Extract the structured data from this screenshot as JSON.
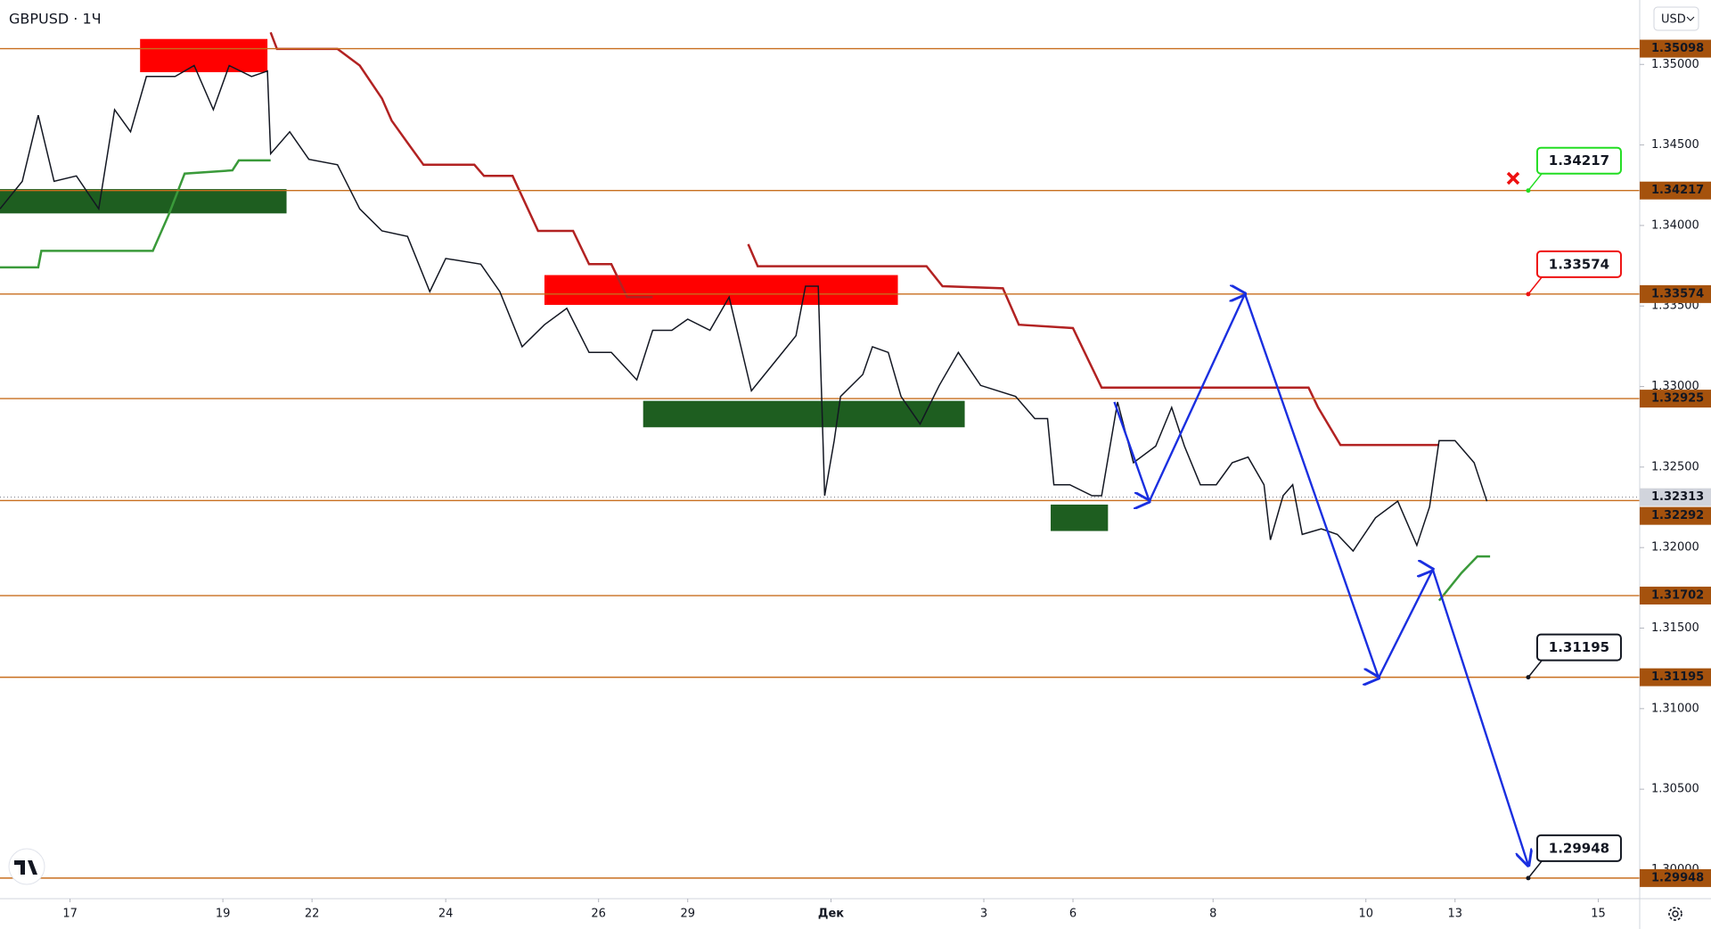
{
  "chart_data": {
    "type": "line",
    "title": "GBPUSD · 1Ч",
    "currency": "USD",
    "color": "#131722",
    "x": [
      -22,
      -15,
      -10,
      -5,
      2,
      9,
      14,
      19,
      24,
      33,
      39,
      45,
      50,
      57,
      62,
      63,
      69,
      75,
      84,
      91,
      98,
      106,
      113,
      118,
      129,
      135,
      142,
      149,
      156,
      163,
      170,
      178,
      183,
      189,
      194,
      201,
      207,
      214,
      221,
      228,
      231,
      235,
      237,
      240,
      242,
      249,
      252,
      257,
      261,
      267,
      273,
      279,
      286,
      297,
      303,
      307,
      309,
      314,
      321,
      324,
      329,
      334,
      341,
      346,
      350,
      355,
      360,
      365,
      370,
      375,
      377,
      381,
      384,
      387,
      393,
      398,
      403,
      410,
      417,
      423,
      427,
      430,
      435,
      441,
      445
    ],
    "values": [
      1.34103,
      1.34274,
      1.34685,
      1.34274,
      1.34308,
      1.34103,
      1.34719,
      1.34582,
      1.34925,
      1.34925,
      1.34993,
      1.34719,
      1.34993,
      1.34925,
      1.34959,
      1.34445,
      1.34582,
      1.34411,
      1.34377,
      1.34103,
      1.33966,
      1.33932,
      1.33589,
      1.33795,
      1.3376,
      1.33589,
      1.33247,
      1.33384,
      1.33486,
      1.33212,
      1.33212,
      1.33041,
      1.33349,
      1.33349,
      1.33418,
      1.33349,
      1.33555,
      1.32973,
      1.33144,
      1.33315,
      1.33623,
      1.33623,
      1.32322,
      1.32664,
      1.32938,
      1.33075,
      1.33247,
      1.33212,
      1.32938,
      1.32767,
      1.33007,
      1.33212,
      1.33007,
      1.32938,
      1.32801,
      1.32801,
      1.3239,
      1.3239,
      1.32322,
      1.32322,
      1.32904,
      1.32527,
      1.3263,
      1.3287,
      1.3263,
      1.3239,
      1.3239,
      1.32527,
      1.32562,
      1.3239,
      1.32048,
      1.32322,
      1.3239,
      1.32082,
      1.32116,
      1.32082,
      1.31979,
      1.32185,
      1.32288,
      1.32014,
      1.32253,
      1.32664,
      1.32664,
      1.32527,
      1.32288
    ],
    "xlim": [
      -22,
      493
    ],
    "xticks": [
      {
        "value": 0,
        "label": "17"
      },
      {
        "value": 48,
        "label": "19"
      },
      {
        "value": 76,
        "label": "22"
      },
      {
        "value": 118,
        "label": "24"
      },
      {
        "value": 166,
        "label": "26"
      },
      {
        "value": 194,
        "label": "29"
      },
      {
        "value": 239,
        "label": "Дек"
      },
      {
        "value": 287,
        "label": "3"
      },
      {
        "value": 315,
        "label": "6"
      },
      {
        "value": 359,
        "label": "8"
      },
      {
        "value": 407,
        "label": "10"
      },
      {
        "value": 435,
        "label": "13"
      },
      {
        "value": 480,
        "label": "15"
      }
    ],
    "ylim": [
      1.2982,
      1.354
    ],
    "yticks": [
      {
        "value": 1.35,
        "label": "1.35000"
      },
      {
        "value": 1.345,
        "label": "1.34500"
      },
      {
        "value": 1.34,
        "label": "1.34000"
      },
      {
        "value": 1.335,
        "label": "1.33500"
      },
      {
        "value": 1.33,
        "label": "1.33000"
      },
      {
        "value": 1.325,
        "label": "1.32500"
      },
      {
        "value": 1.32,
        "label": "1.32000"
      },
      {
        "value": 1.315,
        "label": "1.31500"
      },
      {
        "value": 1.31,
        "label": "1.31000"
      },
      {
        "value": 1.305,
        "label": "1.30500"
      },
      {
        "value": 1.3,
        "label": "1.30000"
      }
    ],
    "last_price": 1.32313,
    "levels": {
      "color": "#c86e1e",
      "values": [
        1.35098,
        1.34217,
        1.33574,
        1.32925,
        1.32292,
        1.31702,
        1.31195,
        1.29948
      ]
    },
    "zones": [
      {
        "color": "#ff0000",
        "x": [
          22,
          62
        ],
        "values": [
          1.34952,
          1.35158
        ]
      },
      {
        "color": "#ff0000",
        "x": [
          149,
          260
        ],
        "values": [
          1.33507,
          1.33692
        ]
      },
      {
        "color": "#1e5e20",
        "x": [
          -22,
          68
        ],
        "values": [
          1.34075,
          1.34226
        ]
      },
      {
        "color": "#1e5e20",
        "x": [
          180,
          281
        ],
        "values": [
          1.32747,
          1.32911
        ]
      },
      {
        "color": "#1e5e20",
        "x": [
          308,
          326
        ],
        "values": [
          1.32103,
          1.32267
        ]
      }
    ],
    "trail": [
      {
        "color": "#b22222",
        "x": [
          63,
          65,
          84,
          91,
          98,
          101,
          106,
          111,
          127,
          130,
          139,
          147,
          158,
          163,
          170,
          175,
          183,
          200,
          213,
          216,
          269,
          274,
          293,
          298,
          315,
          324,
          389,
          392,
          399,
          430
        ],
        "values": [
          1.35199,
          1.35096,
          1.35096,
          1.34993,
          1.34788,
          1.34651,
          1.34514,
          1.34377,
          1.34377,
          1.34308,
          1.34308,
          1.33966,
          1.33966,
          1.3376,
          1.3376,
          1.33555,
          1.33555,
          null,
          1.33884,
          1.33747,
          1.33747,
          1.33623,
          1.3361,
          1.33384,
          1.33363,
          1.32993,
          1.32993,
          1.3287,
          1.32637,
          1.32637
        ]
      },
      {
        "color": "#3a9a3a",
        "x": [
          -22,
          -10,
          -9,
          26,
          31,
          36,
          51,
          53,
          63
        ],
        "values": [
          1.3374,
          1.3374,
          1.33842,
          1.33842,
          1.34068,
          1.34322,
          1.34342,
          1.34404,
          1.34404
        ]
      },
      {
        "color": "#3a9a3a",
        "x": [
          430,
          437,
          442,
          446
        ],
        "values": [
          1.31671,
          1.31842,
          1.31945,
          1.31945
        ]
      }
    ],
    "projection": {
      "color": "#1a2fe0",
      "x": [
        328,
        339,
        369,
        411,
        428,
        458
      ],
      "values": [
        1.32904,
        1.32288,
        1.33575,
        1.31192,
        1.31863,
        1.30027
      ]
    },
    "callouts": [
      {
        "value": 1.34217,
        "color": "#22dd22"
      },
      {
        "value": 1.33574,
        "color": "#ee1111"
      },
      {
        "value": 1.31195,
        "color": "#131722"
      },
      {
        "value": 1.29948,
        "color": "#131722"
      }
    ]
  }
}
